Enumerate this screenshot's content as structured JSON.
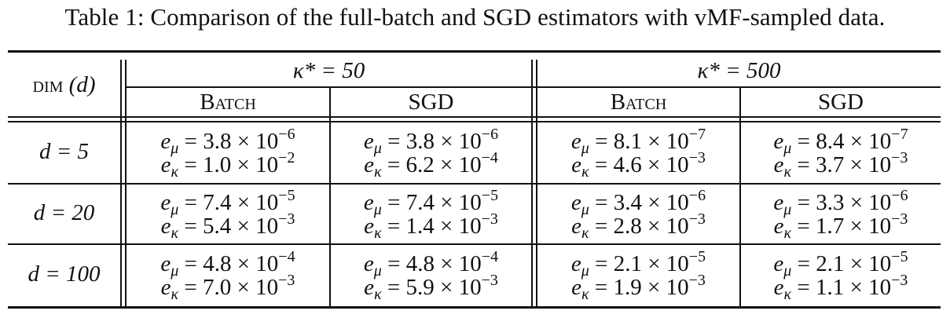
{
  "caption": "Table 1: Comparison of the full-batch and SGD estimators with vMF-sampled data.",
  "header": {
    "dim_label": "dim",
    "dim_var": "(d)",
    "group1": "κ* = 50",
    "group2": "κ* = 500",
    "col_batch": "Batch",
    "col_sgd": "SGD"
  },
  "rows": [
    {
      "label": "d = 5",
      "cells": [
        {
          "mu": "3.8 × 10",
          "mu_exp": "−6",
          "kappa": "1.0 × 10",
          "kappa_exp": "−2"
        },
        {
          "mu": "3.8 × 10",
          "mu_exp": "−6",
          "kappa": "6.2 × 10",
          "kappa_exp": "−4"
        },
        {
          "mu": "8.1 × 10",
          "mu_exp": "−7",
          "kappa": "4.6 × 10",
          "kappa_exp": "−3"
        },
        {
          "mu": "8.4 × 10",
          "mu_exp": "−7",
          "kappa": "3.7 × 10",
          "kappa_exp": "−3"
        }
      ]
    },
    {
      "label": "d = 20",
      "cells": [
        {
          "mu": "7.4 × 10",
          "mu_exp": "−5",
          "kappa": "5.4 × 10",
          "kappa_exp": "−3"
        },
        {
          "mu": "7.4 × 10",
          "mu_exp": "−5",
          "kappa": "1.4 × 10",
          "kappa_exp": "−3"
        },
        {
          "mu": "3.4 × 10",
          "mu_exp": "−6",
          "kappa": "2.8 × 10",
          "kappa_exp": "−3"
        },
        {
          "mu": "3.3 × 10",
          "mu_exp": "−6",
          "kappa": "1.7 × 10",
          "kappa_exp": "−3"
        }
      ]
    },
    {
      "label": "d = 100",
      "cells": [
        {
          "mu": "4.8 × 10",
          "mu_exp": "−4",
          "kappa": "7.0 × 10",
          "kappa_exp": "−3"
        },
        {
          "mu": "4.8 × 10",
          "mu_exp": "−4",
          "kappa": "5.9 × 10",
          "kappa_exp": "−3"
        },
        {
          "mu": "2.1 × 10",
          "mu_exp": "−5",
          "kappa": "1.9 × 10",
          "kappa_exp": "−3"
        },
        {
          "mu": "2.1 × 10",
          "mu_exp": "−5",
          "kappa": "1.1 × 10",
          "kappa_exp": "−3"
        }
      ]
    }
  ],
  "symbols": {
    "e": "e",
    "mu_sub": "μ",
    "kappa_sub": "κ",
    "eq": " = "
  }
}
